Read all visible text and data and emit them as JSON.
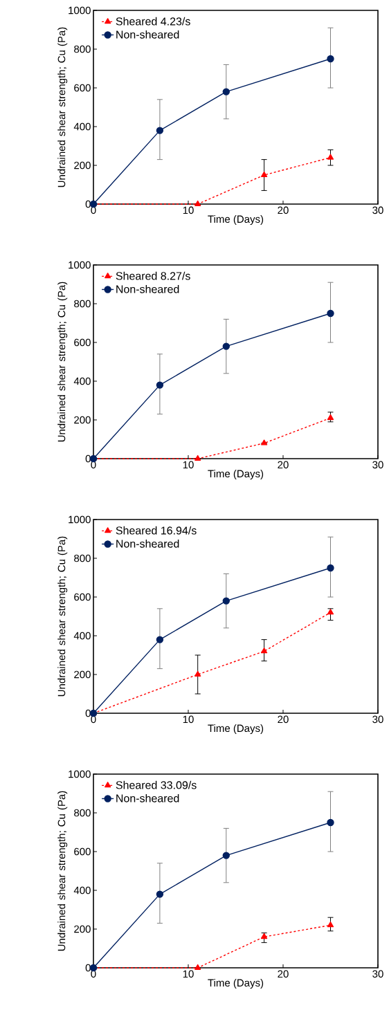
{
  "chart_data": [
    {
      "type": "line",
      "xlabel": "Time (Days)",
      "ylabel": "Undrained shear strength; Cu (Pa)",
      "xlim": [
        0,
        30
      ],
      "ylim": [
        0,
        1000
      ],
      "xticks": [
        0,
        10,
        20,
        30
      ],
      "yticks": [
        0,
        200,
        400,
        600,
        800,
        1000
      ],
      "grid": false,
      "legend": "top left",
      "series": [
        {
          "name": "Sheared 4.23/s",
          "color": "#ff0000",
          "marker": "triangle",
          "line_style": "dashed",
          "x": [
            0,
            11,
            18,
            25
          ],
          "values": [
            0,
            0,
            150,
            240
          ],
          "errors": [
            null,
            null,
            [
              70,
              230
            ],
            [
              200,
              280
            ]
          ]
        },
        {
          "name": "Non-sheared",
          "color": "#002060",
          "marker": "circle",
          "line_style": "solid",
          "x": [
            0,
            7,
            14,
            25
          ],
          "values": [
            0,
            380,
            580,
            750
          ],
          "errors": [
            null,
            [
              230,
              540
            ],
            [
              440,
              720
            ],
            [
              600,
              910
            ]
          ]
        }
      ]
    },
    {
      "type": "line",
      "xlabel": "Time (Days)",
      "ylabel": "Undrained shear strength; Cu (Pa)",
      "xlim": [
        0,
        30
      ],
      "ylim": [
        0,
        1000
      ],
      "xticks": [
        0,
        10,
        20,
        30
      ],
      "yticks": [
        0,
        200,
        400,
        600,
        800,
        1000
      ],
      "grid": false,
      "legend": "top left",
      "series": [
        {
          "name": "Sheared 8.27/s",
          "color": "#ff0000",
          "marker": "triangle",
          "line_style": "dashed",
          "x": [
            0,
            11,
            18,
            25
          ],
          "values": [
            0,
            0,
            80,
            210
          ],
          "errors": [
            null,
            null,
            null,
            [
              190,
              240
            ]
          ]
        },
        {
          "name": "Non-sheared",
          "color": "#002060",
          "marker": "circle",
          "line_style": "solid",
          "x": [
            0,
            7,
            14,
            25
          ],
          "values": [
            0,
            380,
            580,
            750
          ],
          "errors": [
            null,
            [
              230,
              540
            ],
            [
              440,
              720
            ],
            [
              600,
              910
            ]
          ]
        }
      ]
    },
    {
      "type": "line",
      "xlabel": "Time (Days)",
      "ylabel": "Undrained shear strength; Cu (Pa)",
      "xlim": [
        0,
        30
      ],
      "ylim": [
        0,
        1000
      ],
      "xticks": [
        0,
        10,
        20,
        30
      ],
      "yticks": [
        0,
        200,
        400,
        600,
        800,
        1000
      ],
      "grid": false,
      "legend": "top left",
      "series": [
        {
          "name": "Sheared 16.94/s",
          "color": "#ff0000",
          "marker": "triangle",
          "line_style": "dashed",
          "x": [
            0,
            11,
            18,
            25
          ],
          "values": [
            0,
            200,
            320,
            520
          ],
          "errors": [
            null,
            [
              100,
              300
            ],
            [
              270,
              380
            ],
            [
              480,
              540
            ]
          ]
        },
        {
          "name": "Non-sheared",
          "color": "#002060",
          "marker": "circle",
          "line_style": "solid",
          "x": [
            0,
            7,
            14,
            25
          ],
          "values": [
            0,
            380,
            580,
            750
          ],
          "errors": [
            null,
            [
              230,
              540
            ],
            [
              440,
              720
            ],
            [
              600,
              910
            ]
          ]
        }
      ]
    },
    {
      "type": "line",
      "xlabel": "Time (Days)",
      "ylabel": "Undrained shear strength; Cu (Pa)",
      "xlim": [
        0,
        30
      ],
      "ylim": [
        0,
        1000
      ],
      "xticks": [
        0,
        10,
        20,
        30
      ],
      "yticks": [
        0,
        200,
        400,
        600,
        800,
        1000
      ],
      "grid": false,
      "legend": "top left",
      "series": [
        {
          "name": "Sheared 33.09/s",
          "color": "#ff0000",
          "marker": "triangle",
          "line_style": "dashed",
          "x": [
            0,
            11,
            18,
            25
          ],
          "values": [
            0,
            0,
            160,
            220
          ],
          "errors": [
            null,
            null,
            [
              130,
              180
            ],
            [
              190,
              260
            ]
          ]
        },
        {
          "name": "Non-sheared",
          "color": "#002060",
          "marker": "circle",
          "line_style": "solid",
          "x": [
            0,
            7,
            14,
            25
          ],
          "values": [
            0,
            380,
            580,
            750
          ],
          "errors": [
            null,
            [
              230,
              540
            ],
            [
              440,
              720
            ],
            [
              600,
              910
            ]
          ]
        }
      ]
    }
  ]
}
